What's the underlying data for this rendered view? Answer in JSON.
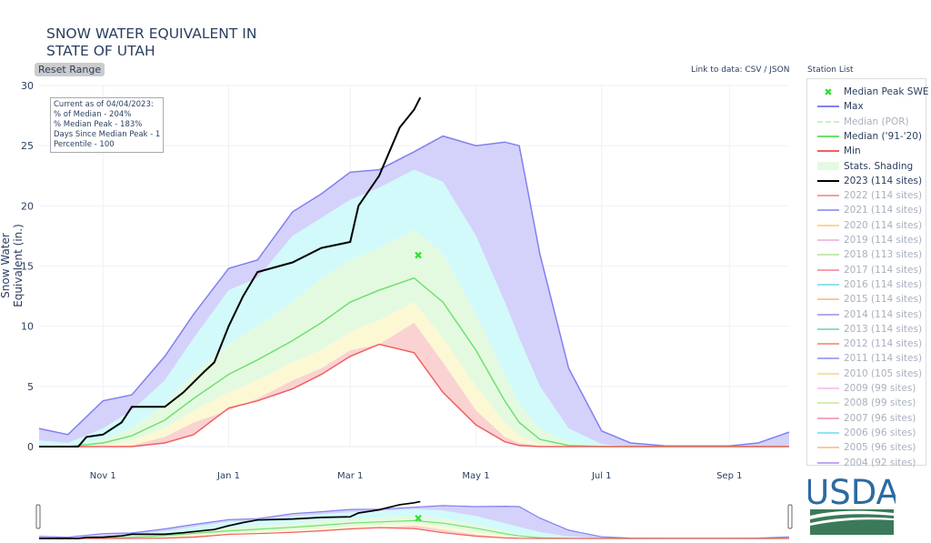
{
  "title": [
    "SNOW WATER EQUIVALENT IN",
    "STATE OF UTAH"
  ],
  "reset_label": "Reset Range",
  "links": {
    "prefix": "Link to data: ",
    "csv": "CSV",
    "sep": " / ",
    "json": "JSON"
  },
  "station_list": "Station List",
  "info": [
    "Current as of 04/04/2023:",
    "% of Median - 204%",
    "% Median Peak - 183%",
    "Days Since Median Peak - 1",
    "Percentile - 100"
  ],
  "logo_text": "USDA",
  "chart_data": {
    "type": "area",
    "ylabel": "Snow Water Equivalent (in.)",
    "ylim": [
      0,
      30
    ],
    "yticks": [
      0,
      5,
      10,
      15,
      20,
      25,
      30
    ],
    "xlim": [
      "2022-10-01",
      "2023-09-30"
    ],
    "xticks": [
      {
        "date": "2022-11-01",
        "label": "Nov 1"
      },
      {
        "date": "2023-01-01",
        "label": "Jan 1"
      },
      {
        "date": "2023-03-01",
        "label": "Mar 1"
      },
      {
        "date": "2023-05-01",
        "label": "May 1"
      },
      {
        "date": "2023-07-01",
        "label": "Jul 1"
      },
      {
        "date": "2023-09-01",
        "label": "Sep 1"
      }
    ],
    "grid": true,
    "legend_position": "right",
    "stat_dates": [
      "2022-10-01",
      "2022-10-15",
      "2022-11-01",
      "2022-11-15",
      "2022-12-01",
      "2022-12-15",
      "2023-01-01",
      "2023-01-15",
      "2023-02-01",
      "2023-02-15",
      "2023-03-01",
      "2023-03-15",
      "2023-04-01",
      "2023-04-15",
      "2023-05-01",
      "2023-05-15",
      "2023-05-22",
      "2023-06-01",
      "2023-06-15",
      "2023-07-01",
      "2023-07-15",
      "2023-08-01",
      "2023-09-01",
      "2023-09-15",
      "2023-09-30"
    ],
    "max": [
      1.5,
      1.0,
      3.8,
      4.3,
      7.5,
      11,
      14.8,
      15.5,
      19.5,
      21,
      22.8,
      23,
      24.5,
      25.8,
      25,
      25.3,
      25,
      16,
      6.5,
      1.3,
      0.3,
      0.05,
      0.05,
      0.3,
      1.2
    ],
    "p90": [
      0.5,
      0.3,
      1.5,
      3,
      5.5,
      9,
      13,
      14,
      17.5,
      19,
      20.5,
      21.5,
      23,
      22,
      17.5,
      12,
      9,
      5,
      1.5,
      0.2,
      0,
      0,
      0,
      0,
      0
    ],
    "p70": [
      0,
      0,
      0.6,
      1.5,
      3.5,
      6,
      8.5,
      10,
      12,
      14,
      15.5,
      16.5,
      18,
      16,
      11,
      6,
      3.5,
      1.5,
      0.3,
      0,
      0,
      0,
      0,
      0,
      0
    ],
    "median": [
      0,
      0,
      0.3,
      0.9,
      2.2,
      4,
      6,
      7.2,
      8.8,
      10.3,
      12,
      13,
      14,
      12,
      8,
      3.8,
      2,
      0.6,
      0.1,
      0,
      0,
      0,
      0,
      0,
      0
    ],
    "p30": [
      0,
      0,
      0.1,
      0.5,
      1.5,
      3,
      4.5,
      5.5,
      7,
      8,
      9.5,
      10.5,
      12,
      9,
      5,
      2,
      0.8,
      0.2,
      0,
      0,
      0,
      0,
      0,
      0,
      0
    ],
    "p10": [
      0,
      0,
      0,
      0.1,
      0.8,
      2,
      3,
      4,
      5.5,
      6.5,
      8,
      8.5,
      10.3,
      7,
      3,
      0.8,
      0.3,
      0.05,
      0,
      0,
      0,
      0,
      0,
      0,
      0
    ],
    "min": [
      0,
      0,
      0,
      0,
      0.3,
      1,
      3.2,
      3.8,
      4.8,
      6,
      7.5,
      8.5,
      7.8,
      4.5,
      1.8,
      0.4,
      0.1,
      0,
      0,
      0,
      0,
      0,
      0,
      0,
      0
    ],
    "current": {
      "name": "2023 (114 sites)",
      "dates": [
        "2022-10-01",
        "2022-10-20",
        "2022-10-24",
        "2022-11-01",
        "2022-11-10",
        "2022-11-15",
        "2022-12-01",
        "2022-12-10",
        "2022-12-20",
        "2022-12-25",
        "2023-01-01",
        "2023-01-08",
        "2023-01-15",
        "2023-02-01",
        "2023-02-15",
        "2023-03-01",
        "2023-03-05",
        "2023-03-15",
        "2023-03-20",
        "2023-03-25",
        "2023-04-01",
        "2023-04-04"
      ],
      "values": [
        0,
        0,
        0.8,
        1.0,
        2.0,
        3.3,
        3.3,
        4.5,
        6.2,
        7,
        10,
        12.5,
        14.5,
        15.3,
        16.5,
        17,
        20,
        22.5,
        24.5,
        26.5,
        28,
        29
      ]
    },
    "median_peak": {
      "date": "2023-04-03",
      "value": 15.9
    },
    "colors": {
      "max": "#8080f0",
      "median": "#70e070",
      "min": "#f06060",
      "current": "#000000",
      "fill_max": "#d4d2fa",
      "fill_p90": "#d2fafa",
      "fill_p70": "#e4fae0",
      "fill_p30": "#fcf8d4",
      "fill_p10": "#fad2d2",
      "peak": "#33dd33"
    }
  },
  "legend": [
    {
      "label": "Median Peak SWE",
      "color": "#33dd33",
      "kind": "marker",
      "active": true
    },
    {
      "label": "Max",
      "color": "#8080f0",
      "kind": "line",
      "active": true
    },
    {
      "label": "Median (POR)",
      "color": "#c8f0c8",
      "kind": "dash",
      "active": false
    },
    {
      "label": "Median ('91-'20)",
      "color": "#70e070",
      "kind": "line",
      "active": true
    },
    {
      "label": "Min",
      "color": "#f06060",
      "kind": "line",
      "active": true
    },
    {
      "label": "Stats. Shading",
      "color": "#e4fae0",
      "kind": "band",
      "active": true
    },
    {
      "label": "2023 (114 sites)",
      "color": "#000000",
      "kind": "line",
      "active": true
    },
    {
      "label": "2022 (114 sites)",
      "color": "#f4a0a0",
      "kind": "line",
      "active": false
    },
    {
      "label": "2021 (114 sites)",
      "color": "#a0a0f4",
      "kind": "line",
      "active": false
    },
    {
      "label": "2020 (114 sites)",
      "color": "#f8d890",
      "kind": "line",
      "active": false
    },
    {
      "label": "2019 (114 sites)",
      "color": "#f0c0e8",
      "kind": "line",
      "active": false
    },
    {
      "label": "2018 (113 sites)",
      "color": "#c8e8b0",
      "kind": "line",
      "active": false
    },
    {
      "label": "2017 (114 sites)",
      "color": "#f4a0b0",
      "kind": "line",
      "active": false
    },
    {
      "label": "2016 (114 sites)",
      "color": "#90e0f0",
      "kind": "line",
      "active": false
    },
    {
      "label": "2015 (114 sites)",
      "color": "#f8c8a0",
      "kind": "line",
      "active": false
    },
    {
      "label": "2014 (114 sites)",
      "color": "#b8a8f0",
      "kind": "line",
      "active": false
    },
    {
      "label": "2013 (114 sites)",
      "color": "#90dcc8",
      "kind": "line",
      "active": false
    },
    {
      "label": "2012 (114 sites)",
      "color": "#f4a090",
      "kind": "line",
      "active": false
    },
    {
      "label": "2011 (114 sites)",
      "color": "#a8a8f4",
      "kind": "line",
      "active": false
    },
    {
      "label": "2010 (105 sites)",
      "color": "#f8e0a0",
      "kind": "line",
      "active": false
    },
    {
      "label": "2009 (99 sites)",
      "color": "#f8c8f0",
      "kind": "line",
      "active": false
    },
    {
      "label": "2008 (99 sites)",
      "color": "#d8ecb0",
      "kind": "line",
      "active": false
    },
    {
      "label": "2007 (96 sites)",
      "color": "#f4a8c0",
      "kind": "line",
      "active": false
    },
    {
      "label": "2006 (96 sites)",
      "color": "#90e4f4",
      "kind": "line",
      "active": false
    },
    {
      "label": "2005 (96 sites)",
      "color": "#f8c8a8",
      "kind": "line",
      "active": false
    },
    {
      "label": "2004 (92 sites)",
      "color": "#c0a8f4",
      "kind": "line",
      "active": false
    }
  ]
}
